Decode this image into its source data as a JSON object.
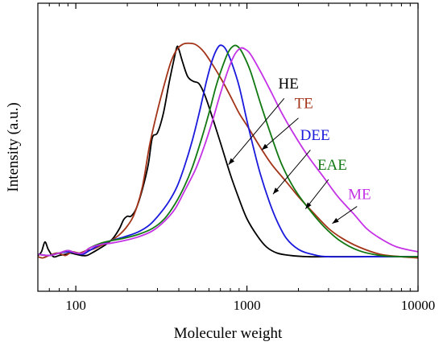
{
  "chart_data": {
    "type": "line",
    "xscale": "log",
    "xlim": [
      60,
      10000
    ],
    "ylim": [
      0,
      1
    ],
    "xlabel": "Moleculer weight",
    "ylabel": "Intensity (a.u.)",
    "x_ticks": [
      {
        "value": 100,
        "label": "100"
      },
      {
        "value": 1000,
        "label": "1000"
      },
      {
        "value": 10000,
        "label": "10000"
      }
    ],
    "x_minor_ticks": [
      70,
      80,
      90,
      200,
      300,
      400,
      500,
      600,
      700,
      800,
      900,
      2000,
      3000,
      4000,
      5000,
      6000,
      7000,
      8000,
      9000
    ],
    "grid": false,
    "series": [
      {
        "name": "HE",
        "color": "#000000",
        "points": [
          [
            60,
            0.09
          ],
          [
            63,
            0.105
          ],
          [
            66,
            0.145
          ],
          [
            69,
            0.115
          ],
          [
            74,
            0.085
          ],
          [
            80,
            0.09
          ],
          [
            87,
            0.095
          ],
          [
            93,
            0.1
          ],
          [
            100,
            0.095
          ],
          [
            108,
            0.09
          ],
          [
            116,
            0.09
          ],
          [
            124,
            0.1
          ],
          [
            135,
            0.115
          ],
          [
            150,
            0.135
          ],
          [
            165,
            0.16
          ],
          [
            180,
            0.2
          ],
          [
            190,
            0.235
          ],
          [
            200,
            0.25
          ],
          [
            210,
            0.25
          ],
          [
            225,
            0.28
          ],
          [
            245,
            0.36
          ],
          [
            265,
            0.46
          ],
          [
            280,
            0.57
          ],
          [
            300,
            0.59
          ],
          [
            325,
            0.67
          ],
          [
            350,
            0.79
          ],
          [
            375,
            0.89
          ],
          [
            390,
            0.94
          ],
          [
            400,
            0.93
          ],
          [
            420,
            0.88
          ],
          [
            450,
            0.82
          ],
          [
            485,
            0.8
          ],
          [
            525,
            0.79
          ],
          [
            570,
            0.74
          ],
          [
            630,
            0.65
          ],
          [
            700,
            0.55
          ],
          [
            800,
            0.42
          ],
          [
            900,
            0.32
          ],
          [
            1000,
            0.24
          ],
          [
            1150,
            0.17
          ],
          [
            1300,
            0.125
          ],
          [
            1500,
            0.1
          ],
          [
            1800,
            0.09
          ],
          [
            2300,
            0.085
          ],
          [
            3000,
            0.085
          ],
          [
            5000,
            0.085
          ],
          [
            10000,
            0.085
          ]
        ]
      },
      {
        "name": "TE",
        "color": "#a33418",
        "points": [
          [
            60,
            0.085
          ],
          [
            64,
            0.08
          ],
          [
            70,
            0.09
          ],
          [
            78,
            0.1
          ],
          [
            87,
            0.09
          ],
          [
            95,
            0.105
          ],
          [
            105,
            0.1
          ],
          [
            115,
            0.11
          ],
          [
            125,
            0.115
          ],
          [
            140,
            0.13
          ],
          [
            160,
            0.15
          ],
          [
            180,
            0.175
          ],
          [
            200,
            0.21
          ],
          [
            220,
            0.26
          ],
          [
            245,
            0.37
          ],
          [
            270,
            0.54
          ],
          [
            300,
            0.68
          ],
          [
            330,
            0.79
          ],
          [
            360,
            0.88
          ],
          [
            390,
            0.93
          ],
          [
            420,
            0.95
          ],
          [
            450,
            0.955
          ],
          [
            500,
            0.95
          ],
          [
            560,
            0.92
          ],
          [
            640,
            0.86
          ],
          [
            720,
            0.8
          ],
          [
            800,
            0.74
          ],
          [
            900,
            0.67
          ],
          [
            1000,
            0.62
          ],
          [
            1200,
            0.53
          ],
          [
            1400,
            0.46
          ],
          [
            1700,
            0.39
          ],
          [
            2000,
            0.33
          ],
          [
            2400,
            0.27
          ],
          [
            3000,
            0.2
          ],
          [
            3600,
            0.16
          ],
          [
            4500,
            0.125
          ],
          [
            6000,
            0.095
          ],
          [
            8000,
            0.085
          ],
          [
            10000,
            0.08
          ]
        ]
      },
      {
        "name": "DEE",
        "color": "#1a1adc",
        "points": [
          [
            60,
            0.095
          ],
          [
            70,
            0.09
          ],
          [
            80,
            0.1
          ],
          [
            90,
            0.105
          ],
          [
            100,
            0.1
          ],
          [
            110,
            0.095
          ],
          [
            120,
            0.11
          ],
          [
            140,
            0.135
          ],
          [
            160,
            0.15
          ],
          [
            190,
            0.165
          ],
          [
            230,
            0.185
          ],
          [
            270,
            0.215
          ],
          [
            310,
            0.26
          ],
          [
            350,
            0.31
          ],
          [
            390,
            0.37
          ],
          [
            430,
            0.45
          ],
          [
            480,
            0.56
          ],
          [
            530,
            0.68
          ],
          [
            580,
            0.8
          ],
          [
            630,
            0.89
          ],
          [
            680,
            0.94
          ],
          [
            720,
            0.945
          ],
          [
            760,
            0.925
          ],
          [
            820,
            0.87
          ],
          [
            900,
            0.78
          ],
          [
            1000,
            0.64
          ],
          [
            1100,
            0.52
          ],
          [
            1200,
            0.42
          ],
          [
            1350,
            0.31
          ],
          [
            1500,
            0.23
          ],
          [
            1700,
            0.16
          ],
          [
            2000,
            0.115
          ],
          [
            2400,
            0.095
          ],
          [
            3000,
            0.085
          ],
          [
            5000,
            0.085
          ],
          [
            10000,
            0.085
          ]
        ]
      },
      {
        "name": "EAE",
        "color": "#127812",
        "points": [
          [
            60,
            0.095
          ],
          [
            70,
            0.09
          ],
          [
            80,
            0.1
          ],
          [
            90,
            0.11
          ],
          [
            100,
            0.1
          ],
          [
            110,
            0.1
          ],
          [
            120,
            0.12
          ],
          [
            140,
            0.14
          ],
          [
            160,
            0.15
          ],
          [
            190,
            0.16
          ],
          [
            230,
            0.175
          ],
          [
            280,
            0.2
          ],
          [
            330,
            0.24
          ],
          [
            380,
            0.3
          ],
          [
            430,
            0.37
          ],
          [
            480,
            0.45
          ],
          [
            540,
            0.56
          ],
          [
            600,
            0.67
          ],
          [
            660,
            0.78
          ],
          [
            720,
            0.86
          ],
          [
            780,
            0.92
          ],
          [
            840,
            0.945
          ],
          [
            890,
            0.94
          ],
          [
            950,
            0.91
          ],
          [
            1050,
            0.84
          ],
          [
            1200,
            0.71
          ],
          [
            1400,
            0.57
          ],
          [
            1600,
            0.46
          ],
          [
            1900,
            0.36
          ],
          [
            2300,
            0.28
          ],
          [
            2800,
            0.21
          ],
          [
            3500,
            0.15
          ],
          [
            4500,
            0.11
          ],
          [
            6000,
            0.09
          ],
          [
            8000,
            0.085
          ],
          [
            10000,
            0.085
          ]
        ]
      },
      {
        "name": "ME",
        "color": "#c532e6",
        "points": [
          [
            60,
            0.095
          ],
          [
            70,
            0.09
          ],
          [
            80,
            0.1
          ],
          [
            90,
            0.11
          ],
          [
            100,
            0.1
          ],
          [
            110,
            0.1
          ],
          [
            120,
            0.12
          ],
          [
            140,
            0.135
          ],
          [
            160,
            0.14
          ],
          [
            190,
            0.15
          ],
          [
            230,
            0.165
          ],
          [
            280,
            0.19
          ],
          [
            330,
            0.23
          ],
          [
            380,
            0.28
          ],
          [
            430,
            0.35
          ],
          [
            500,
            0.44
          ],
          [
            560,
            0.53
          ],
          [
            630,
            0.64
          ],
          [
            700,
            0.75
          ],
          [
            780,
            0.85
          ],
          [
            850,
            0.91
          ],
          [
            920,
            0.935
          ],
          [
            980,
            0.93
          ],
          [
            1050,
            0.91
          ],
          [
            1200,
            0.84
          ],
          [
            1400,
            0.75
          ],
          [
            1600,
            0.67
          ],
          [
            1900,
            0.58
          ],
          [
            2300,
            0.49
          ],
          [
            2800,
            0.41
          ],
          [
            3400,
            0.33
          ],
          [
            4200,
            0.26
          ],
          [
            5000,
            0.2
          ],
          [
            6000,
            0.16
          ],
          [
            7500,
            0.125
          ],
          [
            10000,
            0.105
          ]
        ]
      }
    ],
    "annotations": [
      {
        "text": "HE",
        "color": "#000000",
        "label_at": [
          1750,
          0.77
        ],
        "arrow_from": [
          1650,
          0.73
        ],
        "arrow_to": [
          780,
          0.46
        ]
      },
      {
        "text": "TE",
        "color": "#a33418",
        "label_at": [
          2150,
          0.69
        ],
        "arrow_from": [
          2000,
          0.65
        ],
        "arrow_to": [
          1220,
          0.52
        ]
      },
      {
        "text": "DEE",
        "color": "#1a1adc",
        "label_at": [
          2500,
          0.56
        ],
        "arrow_from": [
          2350,
          0.52
        ],
        "arrow_to": [
          1420,
          0.34
        ]
      },
      {
        "text": "EAE",
        "color": "#127812",
        "label_at": [
          3150,
          0.44
        ],
        "arrow_from": [
          3000,
          0.4
        ],
        "arrow_to": [
          2200,
          0.28
        ]
      },
      {
        "text": "ME",
        "color": "#c532e6",
        "label_at": [
          4550,
          0.32
        ],
        "arrow_from": [
          4400,
          0.29
        ],
        "arrow_to": [
          3150,
          0.22
        ]
      }
    ]
  }
}
